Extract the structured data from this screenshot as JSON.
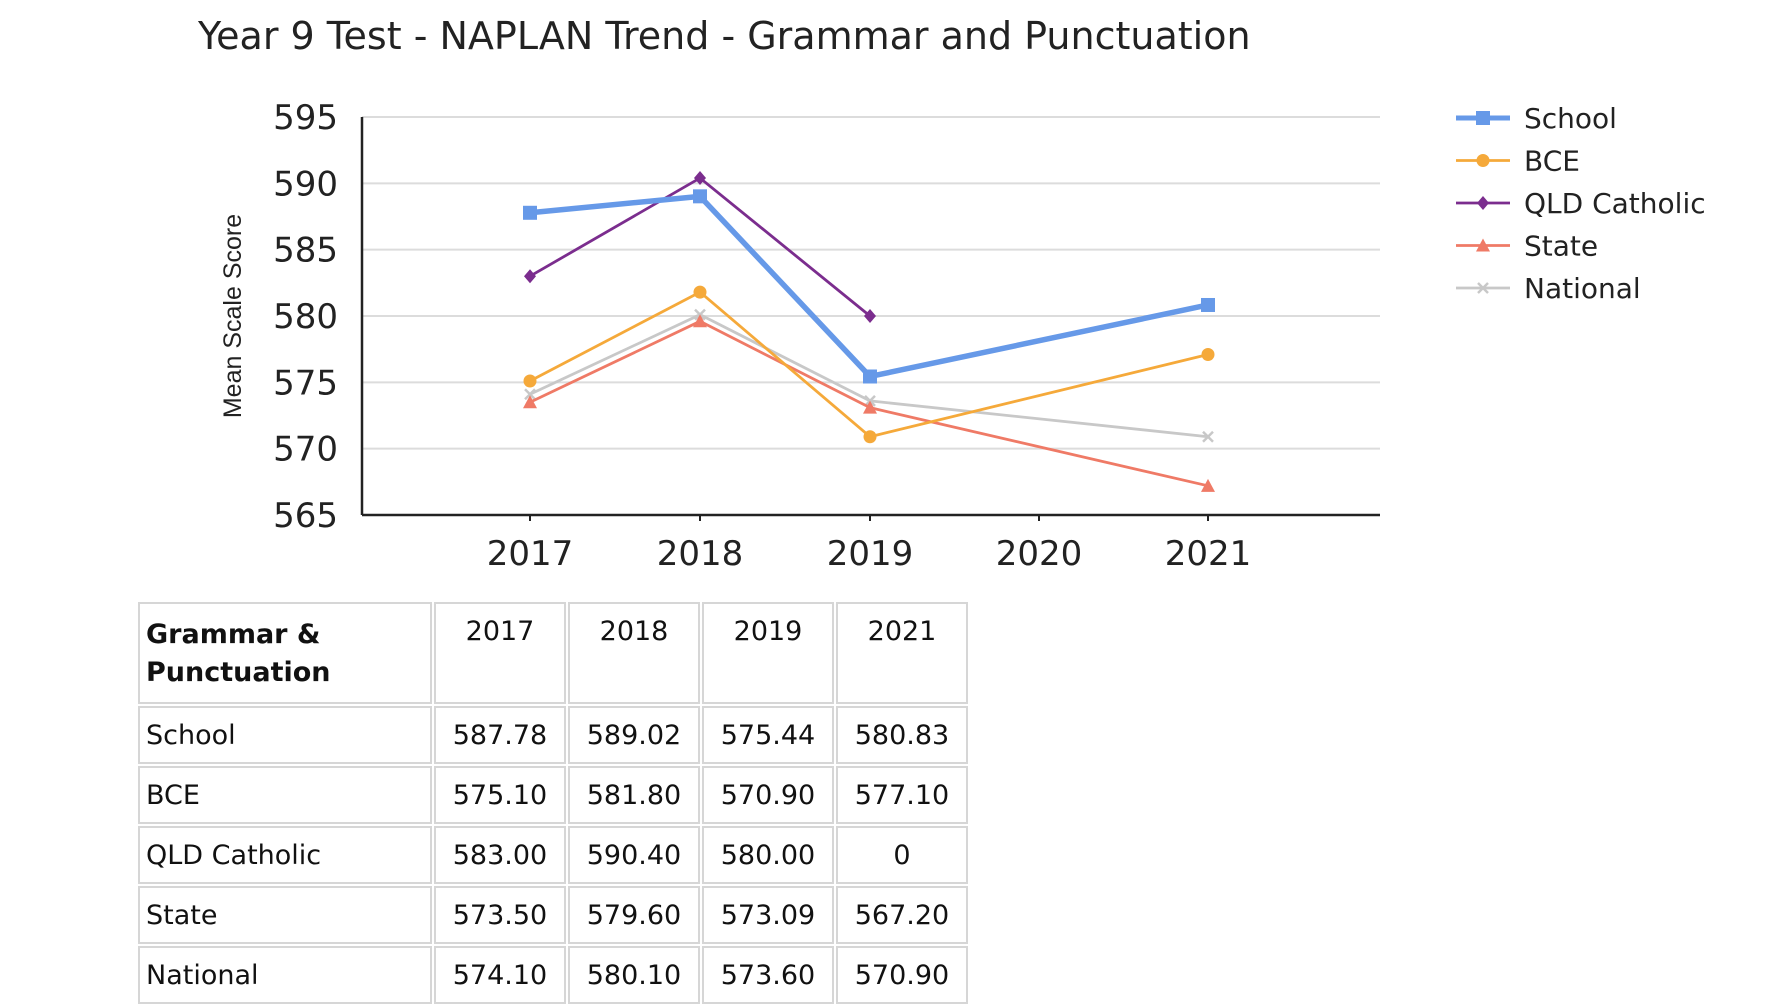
{
  "chart_data": {
    "type": "line",
    "title": "Year 9 Test - NAPLAN Trend - Grammar and Punctuation",
    "ylabel": "Mean Scale Score",
    "xlabel": "",
    "x": [
      "2017",
      "2018",
      "2019",
      "2020",
      "2021"
    ],
    "ylim": [
      565,
      595
    ],
    "yticks": [
      565,
      570,
      575,
      580,
      585,
      590,
      595
    ],
    "grid": true,
    "legend_position": "right",
    "series": [
      {
        "name": "School",
        "color": "#6699e8",
        "marker": "square",
        "values": [
          587.78,
          589.02,
          575.44,
          null,
          580.83
        ]
      },
      {
        "name": "BCE",
        "color": "#f5a93a",
        "marker": "circle",
        "values": [
          575.1,
          581.8,
          570.9,
          null,
          577.1
        ]
      },
      {
        "name": "QLD Catholic",
        "color": "#7b2d8e",
        "marker": "diamond",
        "values": [
          583.0,
          590.4,
          580.0,
          null,
          null
        ]
      },
      {
        "name": "State",
        "color": "#ef7a66",
        "marker": "triangle",
        "values": [
          573.5,
          579.6,
          573.09,
          null,
          567.2
        ]
      },
      {
        "name": "National",
        "color": "#c8c8c8",
        "marker": "x",
        "values": [
          574.1,
          580.1,
          573.6,
          null,
          570.9
        ]
      }
    ]
  },
  "table": {
    "header_label": [
      "Grammar &",
      "Punctuation"
    ],
    "years": [
      "2017",
      "2018",
      "2019",
      "2021"
    ],
    "rows": [
      {
        "label": "School",
        "values": [
          "587.78",
          "589.02",
          "575.44",
          "580.83"
        ]
      },
      {
        "label": "BCE",
        "values": [
          "575.10",
          "581.80",
          "570.90",
          "577.10"
        ]
      },
      {
        "label": "QLD Catholic",
        "values": [
          "583.00",
          "590.40",
          "580.00",
          "0"
        ]
      },
      {
        "label": "State",
        "values": [
          "573.50",
          "579.60",
          "573.09",
          "567.20"
        ]
      },
      {
        "label": "National",
        "values": [
          "574.10",
          "580.10",
          "573.60",
          "570.90"
        ]
      }
    ]
  }
}
